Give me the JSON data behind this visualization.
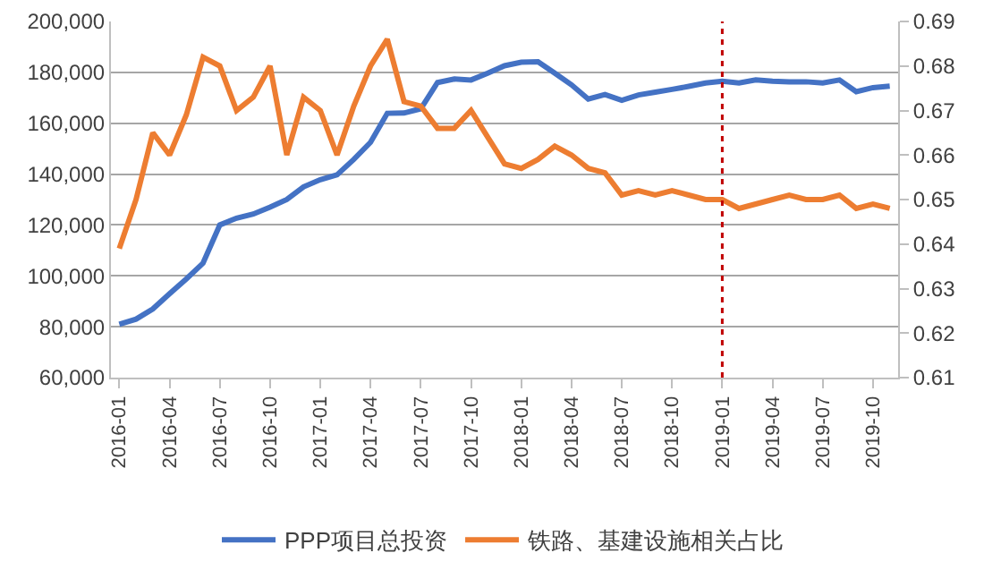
{
  "chart_data": {
    "type": "line",
    "categories": [
      "2016-01",
      null,
      null,
      "2016-04",
      null,
      null,
      "2016-07",
      null,
      null,
      "2016-10",
      null,
      null,
      "2017-01",
      null,
      null,
      "2017-04",
      null,
      null,
      "2017-07",
      null,
      null,
      "2017-10",
      null,
      null,
      "2018-01",
      null,
      null,
      "2018-04",
      null,
      null,
      "2018-07",
      null,
      null,
      "2018-10",
      null,
      null,
      "2019-01",
      null,
      null,
      "2019-04",
      null,
      null,
      "2019-07",
      null,
      null,
      "2019-10",
      null
    ],
    "series": [
      {
        "name": "PPP项目总投资",
        "color": "#4472c4",
        "values": [
          81000,
          83000,
          87000,
          93000,
          98800,
          105000,
          120000,
          122700,
          124300,
          127000,
          130000,
          135000,
          137800,
          139700,
          145800,
          152500,
          163900,
          164000,
          165700,
          176000,
          177400,
          177000,
          179700,
          182600,
          184000,
          184200,
          179700,
          175100,
          169500,
          171300,
          169000,
          171100,
          172200,
          173300,
          174500,
          175800,
          176500,
          175800,
          177000,
          176500,
          176300,
          176300,
          175800,
          177000,
          172400,
          174000,
          174600
        ]
      },
      {
        "name": "铁路、基建设施相关占比",
        "color": "#ed7d31",
        "axis": "y2",
        "values": [
          0.639,
          0.65,
          0.665,
          0.66,
          0.669,
          0.682,
          0.68,
          0.67,
          0.673,
          0.68,
          0.66,
          0.673,
          0.67,
          0.66,
          0.671,
          0.68,
          0.686,
          0.672,
          0.671,
          0.666,
          0.666,
          0.67,
          0.664,
          0.658,
          0.657,
          0.659,
          0.662,
          0.66,
          0.657,
          0.656,
          0.651,
          0.652,
          0.651,
          0.652,
          0.651,
          0.65,
          0.65,
          0.648,
          0.649,
          0.65,
          0.651,
          0.65,
          0.65,
          0.651,
          0.648,
          0.649,
          0.648
        ]
      }
    ],
    "ylim": [
      60000,
      200000
    ],
    "yticks": [
      {
        "value": 60000,
        "label": "60,000"
      },
      {
        "value": 80000,
        "label": "80,000"
      },
      {
        "value": 100000,
        "label": "100,000"
      },
      {
        "value": 120000,
        "label": "120,000"
      },
      {
        "value": 140000,
        "label": "140,000"
      },
      {
        "value": 160000,
        "label": "160,000"
      },
      {
        "value": 180000,
        "label": "180,000"
      },
      {
        "value": 200000,
        "label": "200,000"
      }
    ],
    "y2lim": [
      0.61,
      0.69
    ],
    "y2ticks": [
      0.61,
      0.62,
      0.63,
      0.64,
      0.65,
      0.66,
      0.67,
      0.68,
      0.69
    ],
    "ref_lines": [
      {
        "axis": "x",
        "value": "2019-01",
        "color": "#c00000",
        "line_style": "dotted"
      }
    ],
    "grid": "y",
    "legend": "bottom",
    "marker": "none",
    "line_style": "solid"
  }
}
